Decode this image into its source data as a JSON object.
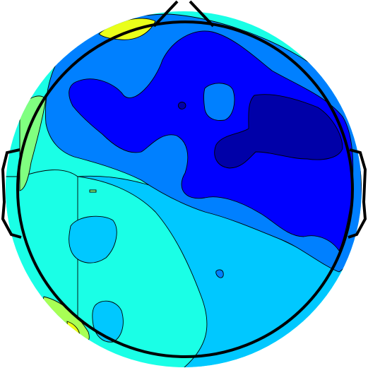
{
  "chart_data": {
    "type": "heatmap",
    "subtype": "scalp-topography",
    "colormap": "jet",
    "colorbar_shown": false,
    "title": "",
    "xlabel": "",
    "ylabel": "",
    "head_outline": true,
    "nose": "top",
    "ears": [
      "left",
      "right"
    ],
    "contour_lines": true,
    "regions": [
      {
        "name": "front-left-peak",
        "level": 0.58,
        "color": "#eaff1a"
      },
      {
        "name": "left-temporal-high",
        "level": 0.5,
        "color": "#80ff80"
      },
      {
        "name": "left-posterior-warm",
        "level": 0.45,
        "color": "#a8ff55"
      },
      {
        "name": "left-posterior-spot",
        "level": 0.6,
        "color": "#f0ff10"
      },
      {
        "name": "left-posterior-field",
        "level": 0.35,
        "color": "#1affe6"
      },
      {
        "name": "lower-right-field",
        "level": 0.3,
        "color": "#00c8ff"
      },
      {
        "name": "frontal-band",
        "level": 0.22,
        "color": "#0080ff"
      },
      {
        "name": "central-right-low",
        "level": 0.12,
        "color": "#0000ff"
      },
      {
        "name": "right-minimum",
        "level": 0.05,
        "color": "#0000a8"
      },
      {
        "name": "frontal-blob",
        "level": 0.2,
        "color": "#0080ff"
      },
      {
        "name": "left-mid-blob",
        "level": 0.3,
        "color": "#00c8ff"
      },
      {
        "name": "left-posterior-blob",
        "level": 0.3,
        "color": "#00c8ff"
      }
    ]
  }
}
